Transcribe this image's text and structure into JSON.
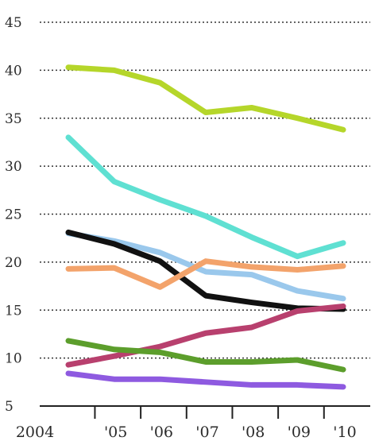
{
  "chart_data": {
    "type": "line",
    "title": "",
    "xlabel": "",
    "ylabel": "",
    "x": [
      2004,
      2005,
      2006,
      2007,
      2008,
      2009,
      2010
    ],
    "x_tick_labels": [
      "2004",
      "'05",
      "'06",
      "'07",
      "'08",
      "'09",
      "'10"
    ],
    "ylim": [
      5,
      45
    ],
    "y_ticks": [
      5,
      10,
      15,
      20,
      25,
      30,
      35,
      40,
      45
    ],
    "y_tick_labels": [
      "5",
      "10",
      "15",
      "20",
      "25",
      "30",
      "35",
      "40",
      "45"
    ],
    "grid": "horizontal-dotted",
    "legend": "none",
    "series": [
      {
        "color": "#b5d62a",
        "values": [
          40.3,
          40.0,
          38.7,
          35.6,
          36.1,
          35.0,
          33.8
        ]
      },
      {
        "color": "#5fe0d2",
        "values": [
          33.0,
          28.4,
          26.5,
          24.8,
          22.6,
          20.6,
          22.0
        ]
      },
      {
        "color": "#9ac8ec",
        "values": [
          23.0,
          22.2,
          21.0,
          19.0,
          18.7,
          17.0,
          16.2
        ]
      },
      {
        "color": "#111111",
        "values": [
          23.1,
          21.9,
          20.1,
          16.5,
          15.8,
          15.2,
          15.1
        ]
      },
      {
        "color": "#f3a36b",
        "values": [
          19.3,
          19.4,
          17.4,
          20.1,
          19.5,
          19.2,
          19.6
        ]
      },
      {
        "color": "#b8406e",
        "values": [
          9.3,
          10.2,
          11.2,
          12.6,
          13.2,
          14.9,
          15.4
        ]
      },
      {
        "color": "#5c9e2c",
        "values": [
          11.8,
          10.9,
          10.6,
          9.6,
          9.6,
          9.8,
          8.8
        ]
      },
      {
        "color": "#8e5ae0",
        "values": [
          8.4,
          7.8,
          7.8,
          7.5,
          7.2,
          7.2,
          7.0
        ]
      }
    ]
  }
}
